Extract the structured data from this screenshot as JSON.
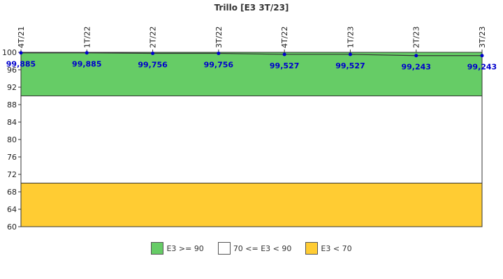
{
  "chart_data": {
    "type": "line",
    "title": "Trillo [E3 3T/23]",
    "categories": [
      "4T/21",
      "1T/22",
      "2T/22",
      "3T/22",
      "4T/22",
      "1T/23",
      "2T/23",
      "3T/23"
    ],
    "values": [
      99.885,
      99.885,
      99.756,
      99.756,
      99.527,
      99.527,
      99.243,
      99.243
    ],
    "value_labels": [
      "99,885",
      "99,885",
      "99,756",
      "99,756",
      "99,527",
      "99,527",
      "99,243",
      "99,243"
    ],
    "ylim": [
      60,
      100
    ],
    "yticks": [
      60,
      64,
      68,
      72,
      76,
      80,
      84,
      88,
      92,
      96,
      100
    ],
    "grid": false,
    "line_color": "#333333",
    "marker_color": "#0000cc",
    "bands": [
      {
        "from": 90,
        "to": 100,
        "color": "#66cc66",
        "label": "E3 >= 90"
      },
      {
        "from": 70,
        "to": 90,
        "color": "#ffffff",
        "label": "70 <= E3 < 90"
      },
      {
        "from": 60,
        "to": 70,
        "color": "#ffcc33",
        "label": "E3 < 70"
      }
    ],
    "legend_position": "bottom"
  }
}
